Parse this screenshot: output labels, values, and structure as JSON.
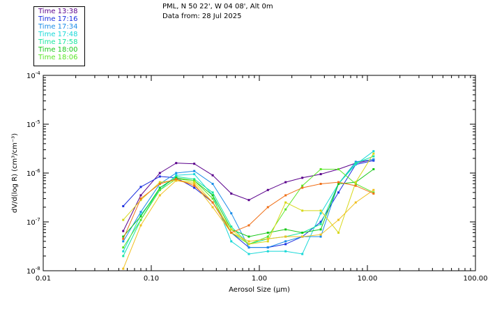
{
  "header": {
    "site": "PML, N 50 22', W 04 08', Alt 0m",
    "date": "Data from: 28 Jul 2025"
  },
  "chart_data": {
    "type": "line",
    "xscale": "log",
    "yscale": "log",
    "xlim": [
      0.01,
      100
    ],
    "ylim": [
      1e-08,
      0.0001
    ],
    "xlabel": "Aerosol Size (µm)",
    "ylabel": "dV/d(log R) (cm³/cm⁻³)",
    "x_tick_labels": [
      "0.01",
      "0.10",
      "1.00",
      "10.00",
      "100.00"
    ],
    "x_tick_values": [
      0.01,
      0.1,
      1,
      10,
      100
    ],
    "y_tick_values": [
      1e-08,
      1e-07,
      1e-06,
      1e-05,
      0.0001
    ],
    "y_tick_base": "10",
    "y_tick_exponents": [
      "-8",
      "-7",
      "-6",
      "-5",
      "-4"
    ],
    "legend_placement": "top-left",
    "x": [
      0.055,
      0.08,
      0.12,
      0.17,
      0.25,
      0.37,
      0.55,
      0.8,
      1.2,
      1.75,
      2.5,
      3.7,
      5.4,
      7.8,
      11.4
    ],
    "series": [
      {
        "name": "Time 13:38",
        "color": "#5a008c",
        "values": [
          6.5e-08,
          3.5e-07,
          1e-06,
          1.6e-06,
          1.55e-06,
          9e-07,
          3.8e-07,
          2.8e-07,
          4.5e-07,
          6.5e-07,
          8e-07,
          9.5e-07,
          1.2e-06,
          1.6e-06,
          1.9e-06
        ]
      },
      {
        "name": "Time 17:16",
        "color": "#1a2ee0",
        "values": [
          2.1e-07,
          5.2e-07,
          8.5e-07,
          8e-07,
          5e-07,
          2.5e-07,
          6e-08,
          3e-08,
          3e-08,
          3.5e-08,
          5e-08,
          1e-07,
          4e-07,
          1.5e-06,
          1.8e-06
        ]
      },
      {
        "name": "Time 17:34",
        "color": "#1a8ce8",
        "values": [
          4e-08,
          1.6e-07,
          6e-07,
          1e-06,
          1.1e-06,
          6e-07,
          1.5e-07,
          3e-08,
          3e-08,
          4e-08,
          5e-08,
          5e-08,
          6e-07,
          1.7e-06,
          1.9e-06
        ]
      },
      {
        "name": "Time 17:48",
        "color": "#18d8d8",
        "values": [
          2.5e-08,
          1.4e-07,
          4.5e-07,
          9e-07,
          9.5e-07,
          3.5e-07,
          4e-08,
          2.2e-08,
          2.5e-08,
          2.5e-08,
          2.2e-08,
          1.5e-07,
          6e-07,
          1.5e-06,
          2.8e-06
        ]
      },
      {
        "name": "Time 17:58",
        "color": "#18e6a0",
        "values": [
          2e-08,
          1.1e-07,
          5e-07,
          8.5e-07,
          7.5e-07,
          4e-07,
          8e-08,
          3.5e-08,
          4.5e-08,
          5e-08,
          6e-08,
          9e-08,
          6e-07,
          1.6e-06,
          2.2e-06
        ]
      },
      {
        "name": "Time 18:00",
        "color": "#18c818",
        "values": [
          5e-08,
          1.3e-07,
          5e-07,
          8e-07,
          7e-07,
          3.5e-07,
          7e-08,
          5e-08,
          6e-08,
          7e-08,
          6e-08,
          7e-08,
          6e-07,
          6.5e-07,
          1.2e-06
        ]
      },
      {
        "name": "Time 18:06",
        "color": "#5ae628",
        "values": [
          3e-08,
          1.1e-07,
          4.5e-07,
          7.5e-07,
          7e-07,
          3e-07,
          6e-08,
          3.5e-08,
          5e-08,
          1.8e-07,
          5.5e-07,
          1.2e-06,
          1.2e-06,
          6e-07,
          4e-07
        ]
      },
      {
        "name": "",
        "color": "#d8d818",
        "values": [
          1.1e-07,
          2.8e-07,
          6.5e-07,
          7e-07,
          6.5e-07,
          2.5e-07,
          7e-08,
          3.5e-08,
          4e-08,
          2.5e-07,
          1.7e-07,
          1.7e-07,
          6e-08,
          6.5e-07,
          2.5e-06
        ]
      },
      {
        "name": "",
        "color": "#f0c020",
        "values": [
          1.1e-08,
          8.5e-08,
          3.5e-07,
          7e-07,
          6e-07,
          2e-07,
          6e-08,
          4e-08,
          4.5e-08,
          5e-08,
          5e-08,
          5.5e-08,
          1.1e-07,
          2.5e-07,
          4.5e-07
        ]
      },
      {
        "name": "",
        "color": "#f07018",
        "values": [
          4.5e-08,
          3e-07,
          6e-07,
          7.5e-07,
          5.5e-07,
          2.5e-07,
          6e-08,
          8.5e-08,
          2e-07,
          3.5e-07,
          5e-07,
          6e-07,
          6.5e-07,
          5.5e-07,
          3.8e-07
        ]
      }
    ]
  }
}
